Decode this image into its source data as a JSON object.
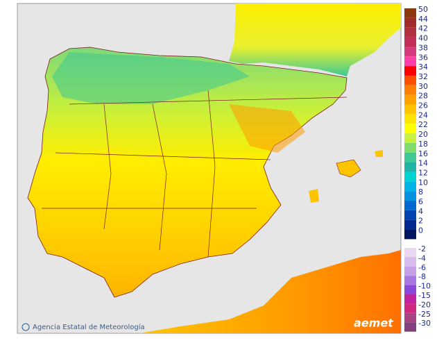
{
  "legend": {
    "items": [
      {
        "label": 50,
        "color": "#8b3a0f"
      },
      {
        "label": 44,
        "color": "#a02c2c"
      },
      {
        "label": 42,
        "color": "#b23040"
      },
      {
        "label": 40,
        "color": "#c23058"
      },
      {
        "label": 38,
        "color": "#d63a7a"
      },
      {
        "label": 36,
        "color": "#ff3fa6"
      },
      {
        "label": 34,
        "color": "#ff0000"
      },
      {
        "label": 32,
        "color": "#ff5000"
      },
      {
        "label": 30,
        "color": "#ff8000"
      },
      {
        "label": 28,
        "color": "#ffa200"
      },
      {
        "label": 26,
        "color": "#ffc400"
      },
      {
        "label": 24,
        "color": "#ffe400"
      },
      {
        "label": 22,
        "color": "#ffff00"
      },
      {
        "label": 20,
        "color": "#c8f03c"
      },
      {
        "label": 18,
        "color": "#7edc6a"
      },
      {
        "label": 16,
        "color": "#3ec894"
      },
      {
        "label": 14,
        "color": "#1fb4a6"
      },
      {
        "label": 12,
        "color": "#00d2d2"
      },
      {
        "label": 10,
        "color": "#00b4e6"
      },
      {
        "label": 8,
        "color": "#0092e0"
      },
      {
        "label": 6,
        "color": "#0068d0"
      },
      {
        "label": 4,
        "color": "#0044b0"
      },
      {
        "label": 2,
        "color": "#002890"
      },
      {
        "label": 0,
        "color": "#001460"
      }
    ],
    "negative_items": [
      {
        "label": -2,
        "color": "#ead8f2"
      },
      {
        "label": -4,
        "color": "#d8bcec"
      },
      {
        "label": -6,
        "color": "#c4a0e6"
      },
      {
        "label": -8,
        "color": "#a878e2"
      },
      {
        "label": -10,
        "color": "#8a48d8"
      },
      {
        "label": -15,
        "color": "#c0249e"
      },
      {
        "label": -20,
        "color": "#d0287e"
      },
      {
        "label": -25,
        "color": "#a84484"
      },
      {
        "label": -30,
        "color": "#84407c"
      }
    ]
  },
  "credit": "Agencia Estatal de Meteorología",
  "logo": "aemet"
}
